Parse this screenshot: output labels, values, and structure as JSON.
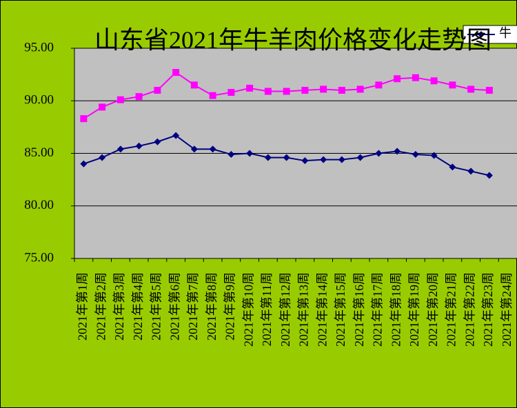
{
  "chart_data": {
    "type": "line",
    "title": "山东省2021年牛羊肉价格变化走势图",
    "categories": [
      "2021年第1周",
      "2021年第2周",
      "2021年第3周",
      "2021年第4周",
      "2021年第5周",
      "2021年第6周",
      "2021年第7周",
      "2021年第8周",
      "2021年第9周",
      "2021年第10周",
      "2021年第11周",
      "2021年第12周",
      "2021年第13周",
      "2021年第14周",
      "2021年第15周",
      "2021年第16周",
      "2021年第17周",
      "2021年第18周",
      "2021年第19周",
      "2021年第20周",
      "2021年第21周",
      "2021年第22周",
      "2021年第23周",
      "2021年第24周"
    ],
    "series": [
      {
        "name": "牛",
        "color": "#000080",
        "marker": "diamond",
        "values": [
          84.0,
          84.6,
          85.4,
          85.7,
          86.1,
          86.7,
          85.4,
          85.4,
          84.9,
          85.0,
          84.6,
          84.6,
          84.3,
          84.4,
          84.4,
          84.6,
          85.0,
          85.2,
          84.9,
          84.8,
          83.7,
          83.3,
          82.9,
          null
        ]
      },
      {
        "color": "#ff00ff",
        "marker": "square",
        "values": [
          88.3,
          89.4,
          90.1,
          90.4,
          91.0,
          92.7,
          91.5,
          90.5,
          90.8,
          91.2,
          90.9,
          90.9,
          91.0,
          91.1,
          91.0,
          91.1,
          91.5,
          92.1,
          92.2,
          91.9,
          91.5,
          91.1,
          91.0,
          null
        ]
      }
    ],
    "ylim": [
      75,
      95
    ],
    "yticks": [
      {
        "value": 75,
        "label": "75.00"
      },
      {
        "value": 80,
        "label": "80.00"
      },
      {
        "value": 85,
        "label": "85.00"
      },
      {
        "value": 90,
        "label": "90.00"
      },
      {
        "value": 95,
        "label": "95.00"
      }
    ],
    "grid": true,
    "legend": "top-right"
  }
}
